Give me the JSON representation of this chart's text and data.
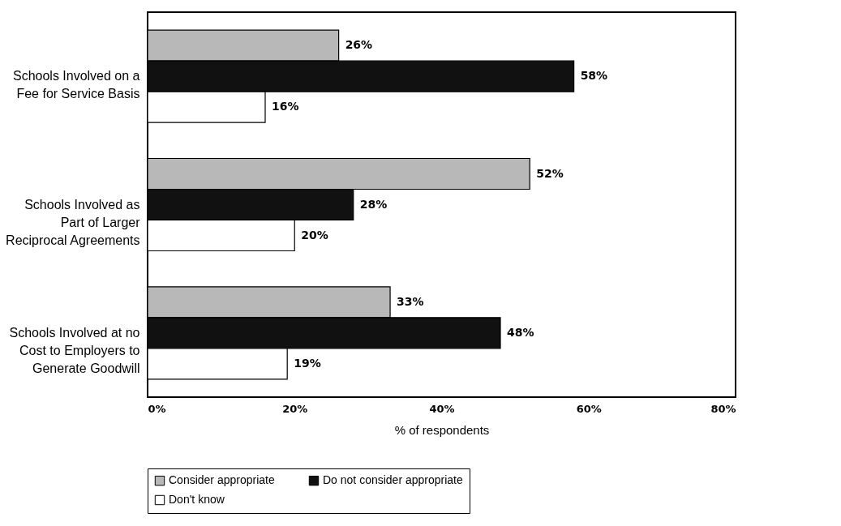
{
  "chart_data": {
    "type": "bar",
    "orientation": "horizontal",
    "xlabel": "% of respondents",
    "categories": [
      "Schools Involved on a Fee for Service Basis",
      "Schools Involved as Part of Larger Reciprocal Agreements",
      "Schools Involved at no Cost to Employers to Generate Goodwill"
    ],
    "series": [
      {
        "name": "Consider appropriate",
        "color": "#b8b8b8",
        "values": [
          26,
          52,
          33
        ],
        "value_labels": [
          "26%",
          "52%",
          "33%"
        ]
      },
      {
        "name": "Do not consider appropriate",
        "color": "#111111",
        "values": [
          58,
          28,
          48
        ],
        "value_labels": [
          "58%",
          "28%",
          "48%"
        ]
      },
      {
        "name": "Don't know",
        "color": "#ffffff",
        "values": [
          16,
          20,
          19
        ],
        "value_labels": [
          "16%",
          "20%",
          "19%"
        ]
      }
    ],
    "xlim": [
      0,
      80
    ],
    "xticks": [
      {
        "value": 0,
        "label": "0%"
      },
      {
        "value": 20,
        "label": "20%"
      },
      {
        "value": 40,
        "label": "40%"
      },
      {
        "value": 60,
        "label": "60%"
      },
      {
        "value": 80,
        "label": "80%"
      }
    ],
    "grid": false,
    "legend": "bottom"
  }
}
